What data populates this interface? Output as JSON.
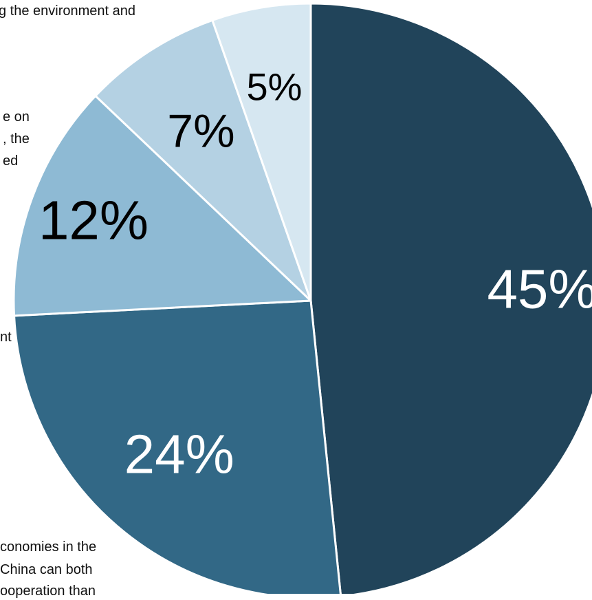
{
  "chart_data": {
    "type": "pie",
    "start_angle_deg": 0,
    "direction": "clockwise",
    "slices": [
      {
        "label": "45%",
        "value": 45,
        "color": "#21445a",
        "label_color": "#ffffff"
      },
      {
        "label": "24%",
        "value": 24,
        "color": "#326886",
        "label_color": "#ffffff"
      },
      {
        "label": "12%",
        "value": 12,
        "color": "#8ebad4",
        "label_color": "#000000"
      },
      {
        "label": "7%",
        "value": 7,
        "color": "#b4d1e3",
        "label_color": "#000000"
      },
      {
        "label": "5%",
        "value": 5,
        "color": "#d6e7f1",
        "label_color": "#000000"
      }
    ],
    "annotations": [
      {
        "name": "annotation-top",
        "text": "g the environment and"
      },
      {
        "name": "annotation-left-1",
        "text": "e on"
      },
      {
        "name": "annotation-left-2",
        "text": ", the"
      },
      {
        "name": "annotation-left-3",
        "text": "ed"
      },
      {
        "name": "annotation-mid",
        "text": "nt"
      },
      {
        "name": "annotation-bottom-1",
        "text": "conomies in the"
      },
      {
        "name": "annotation-bottom-2",
        "text": "China can both"
      },
      {
        "name": "annotation-bottom-3",
        "text": "ooperation than"
      }
    ]
  }
}
